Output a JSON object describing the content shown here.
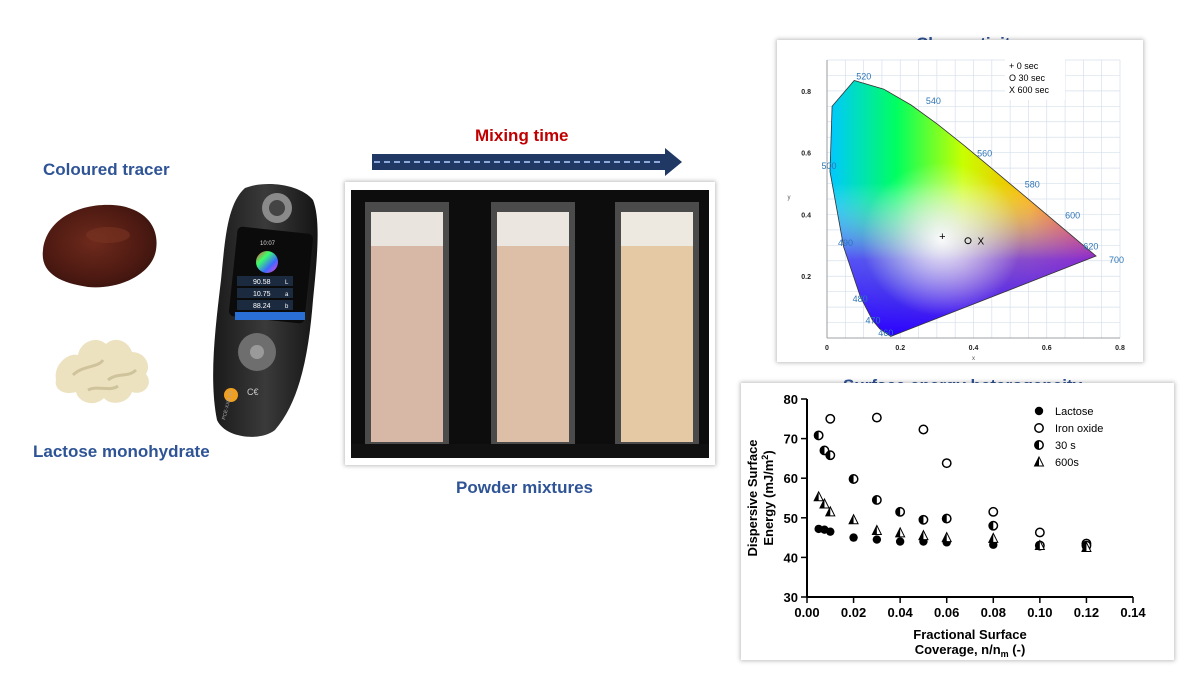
{
  "labels": {
    "coloured_tracer": "Coloured tracer",
    "lactose": "Lactose monohydrate",
    "mixing_time": "Mixing time",
    "powder_mixtures": "Powder mixtures",
    "chromaticity": "Chromaticity",
    "surface_energy": "Surface energy heterogeneity"
  },
  "device": {
    "time": "10:07",
    "readings": [
      "90.58",
      "10.75",
      "88.24"
    ],
    "reading_keys": [
      "L",
      "a",
      "b"
    ],
    "brand": "PCE-XXM 20"
  },
  "colors": {
    "title_blue": "#2f5496",
    "mixing_red": "#c00000",
    "arrow_navy": "#1f3864",
    "tracer_brown": "#5a1f14",
    "lactose_cream": "#efe6c5",
    "powder_shades": [
      "#d7b7a6",
      "#dcbfa6",
      "#e5c9a4"
    ]
  },
  "chart_data": [
    {
      "type": "scatter",
      "title": "Chromaticity",
      "xlabel": "x",
      "ylabel": "y",
      "xlim": [
        0,
        0.8
      ],
      "ylim": [
        0,
        0.9
      ],
      "xticks": [
        "0",
        "0.2",
        "0.4",
        "0.6",
        "0.8"
      ],
      "yticks": [
        "0.2",
        "0.4",
        "0.6",
        "0.8"
      ],
      "wavelength_labels": [
        "460",
        "470",
        "480",
        "490",
        "500",
        "520",
        "540",
        "560",
        "580",
        "600",
        "620",
        "700"
      ],
      "legend": [
        "+ 0 sec",
        "O 30 sec",
        "X 600 sec"
      ],
      "legend_position": "top-right",
      "grid": true,
      "series": [
        {
          "name": "0 sec",
          "marker": "+",
          "x": [
            0.315
          ],
          "y": [
            0.33
          ]
        },
        {
          "name": "30 sec",
          "marker": "O",
          "x": [
            0.385
          ],
          "y": [
            0.315
          ]
        },
        {
          "name": "600 sec",
          "marker": "X",
          "x": [
            0.42
          ],
          "y": [
            0.315
          ]
        }
      ]
    },
    {
      "type": "scatter",
      "title": "Surface energy heterogeneity",
      "xlabel_lines": [
        "Fractional Surface",
        "Coverage, n/n",
        "m",
        " (-)"
      ],
      "ylabel_lines": [
        "Dispersive Surface",
        "Energy (mJ/m",
        "2",
        ")"
      ],
      "xlim": [
        0,
        0.14
      ],
      "ylim": [
        30,
        80
      ],
      "xticks": [
        "0.00",
        "0.02",
        "0.04",
        "0.06",
        "0.08",
        "0.10",
        "0.12",
        "0.14"
      ],
      "yticks": [
        "30",
        "40",
        "50",
        "60",
        "70",
        "80"
      ],
      "legend_position": "top-right",
      "grid": false,
      "series": [
        {
          "name": "Lactose",
          "marker": "filled-circle",
          "x": [
            0.005,
            0.0075,
            0.01,
            0.02,
            0.03,
            0.04,
            0.05,
            0.06,
            0.08,
            0.1,
            0.12
          ],
          "y": [
            47.2,
            47,
            46.5,
            45,
            44.5,
            44,
            44,
            43.8,
            43.2,
            42.8,
            42.5
          ]
        },
        {
          "name": "Iron oxide",
          "marker": "open-circle",
          "x": [
            0.01,
            0.03,
            0.05,
            0.06,
            0.08,
            0.1,
            0.12
          ],
          "y": [
            75,
            75.3,
            72.3,
            63.8,
            51.5,
            46.3,
            43.5
          ]
        },
        {
          "name": "30 s",
          "marker": "half-circle",
          "x": [
            0.005,
            0.0075,
            0.01,
            0.02,
            0.03,
            0.04,
            0.05,
            0.06,
            0.08,
            0.1,
            0.12
          ],
          "y": [
            70.8,
            67,
            65.8,
            59.8,
            54.5,
            51.5,
            49.5,
            49.8,
            48,
            43,
            43
          ]
        },
        {
          "name": "600s",
          "marker": "half-triangle",
          "x": [
            0.005,
            0.0075,
            0.01,
            0.02,
            0.03,
            0.04,
            0.05,
            0.06,
            0.08,
            0.1,
            0.12
          ],
          "y": [
            55.3,
            53.5,
            51.5,
            49.5,
            46.8,
            46.2,
            45.5,
            45,
            44.8,
            43,
            42.5
          ]
        }
      ]
    }
  ]
}
